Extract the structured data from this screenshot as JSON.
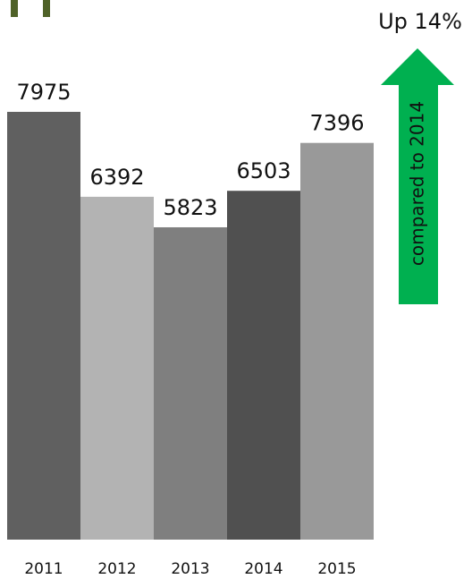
{
  "chart_data": {
    "type": "bar",
    "categories": [
      "2011",
      "2012",
      "2013",
      "2014",
      "2015"
    ],
    "values": [
      7975,
      6392,
      5823,
      6503,
      7396
    ],
    "bar_colors": [
      "#606060",
      "#b3b3b3",
      "#7f7f7f",
      "#505050",
      "#999999"
    ],
    "ylim": [
      0,
      8000
    ],
    "grid": false,
    "annotation": {
      "headline": "Up 14%",
      "arrow_text": "compared to 2014",
      "arrow_color": "#00b050"
    }
  },
  "corner_mark_color": "#4f6228"
}
